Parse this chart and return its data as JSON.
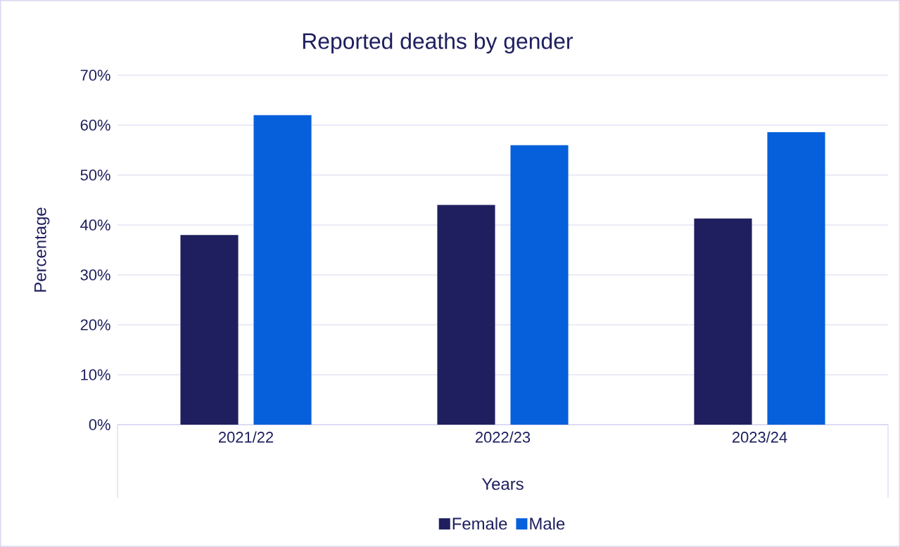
{
  "chart_data": {
    "type": "bar",
    "title": "Reported deaths by gender",
    "xlabel": "Years",
    "ylabel": "Percentage",
    "categories": [
      "2021/22",
      "2022/23",
      "2023/24"
    ],
    "series": [
      {
        "name": "Female",
        "color": "#1f1f5f",
        "values": [
          38,
          44,
          41.3
        ]
      },
      {
        "name": "Male",
        "color": "#0760db",
        "values": [
          62,
          56,
          58.6
        ]
      }
    ],
    "ylim": [
      0,
      70
    ],
    "yticks": [
      {
        "value": 0,
        "label": "0%"
      },
      {
        "value": 10,
        "label": "10%"
      },
      {
        "value": 20,
        "label": "20%"
      },
      {
        "value": 30,
        "label": "30%"
      },
      {
        "value": 40,
        "label": "40%"
      },
      {
        "value": 50,
        "label": "50%"
      },
      {
        "value": 60,
        "label": "60%"
      },
      {
        "value": 70,
        "label": "70%"
      }
    ],
    "grid": "y",
    "legend": "bottom"
  }
}
